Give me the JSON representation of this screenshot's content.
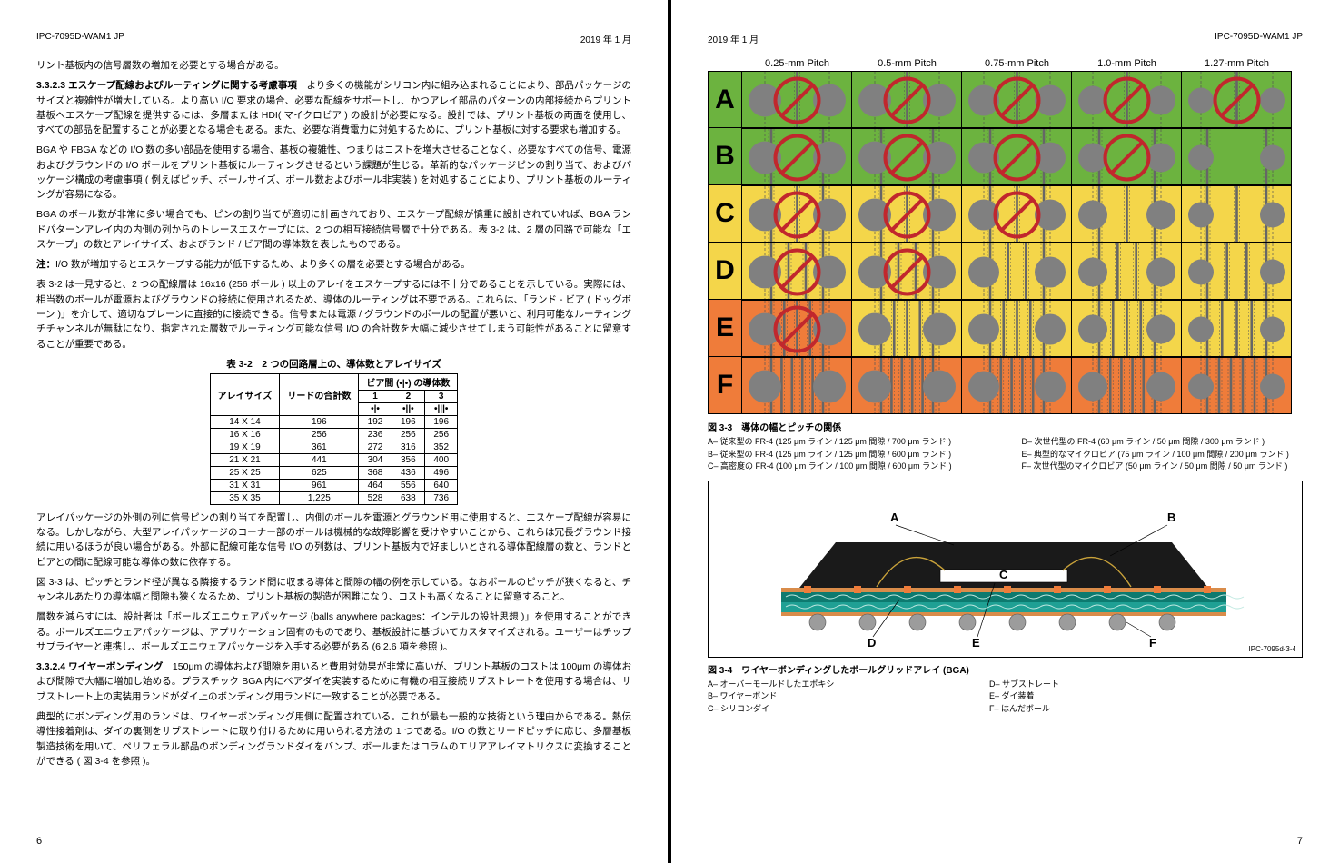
{
  "doc_id": "IPC-7095D-WAM1 JP",
  "date": "2019 年 1 月",
  "left": {
    "intro": "リント基板内の信号層数の増加を必要とする場合がある。",
    "sec_num": "3.3.2.3",
    "sec_title": "エスケープ配線およびルーティングに関する考慮事項",
    "p1": "より多くの機能がシリコン内に組み込まれることにより、部品パッケージのサイズと複雑性が増大している。より高い I/O 要求の場合、必要な配線をサポートし、かつアレイ部品のパターンの内部接続からプリント基板へエスケープ配線を提供するには、多層または HDI( マイクロビア ) の設計が必要になる。設計では、プリント基板の両面を使用し、すべての部品を配置することが必要となる場合もある。また、必要な消費電力に対処するために、プリント基板に対する要求も増加する。",
    "p2": "BGA や FBGA などの I/O 数の多い部品を使用する場合、基板の複雑性、つまりはコストを増大させることなく、必要なすべての信号、電源およびグラウンドの I/O ボールをプリント基板にルーティングさせるという課題が生じる。革新的なパッケージピンの割り当て、およびパッケージ構成の考慮事項 ( 例えばピッチ、ボールサイズ、ボール数およびボール非実装 ) を対処することにより、プリント基板のルーティングが容易になる。",
    "p3": "BGA のボール数が非常に多い場合でも、ピンの割り当てが適切に計画されており、エスケープ配線が慎重に設計されていれば、BGA ランドパターンアレイ内の内側の列からのトレースエスケープには、2 つの相互接続信号層で十分である。表 3-2 は、2 層の回路で可能な「エスケープ」の数とアレイサイズ、およびランド / ビア間の導体数を表したものである。",
    "note_label": "注：",
    "note": "I/O 数が増加するとエスケープする能力が低下するため、より多くの層を必要とする場合がある。",
    "p4": "表 3-2 は一見すると、2 つの配線層は 16x16 (256 ボール ) 以上のアレイをエスケープするには不十分であることを示している。実際には、相当数のボールが電源およびグラウンドの接続に使用されるため、導体のルーティングは不要である。これらは、「ランド - ビア ( ドッグボーン )」を介して、適切なプレーンに直接的に接続できる。信号または電源 / グラウンドのボールの配置が悪いと、利用可能なルーティングチチャンネルが無駄になり、指定された層数でルーティング可能な信号 I/O の合計数を大幅に減少させてしまう可能性があることに留意することが重要である。",
    "table_title": "表 3-2　2 つの回路層上の、導体数とアレイサイズ",
    "table": {
      "col1": "アレイサイズ",
      "col2": "リードの合計数",
      "span_head": "ビア間 (•|•) の導体数",
      "sub1": "1",
      "sub2": "2",
      "sub3": "3",
      "icon1": "•|•",
      "icon2": "•||•",
      "icon3": "•|||•",
      "rows": [
        [
          "14 X 14",
          "196",
          "192",
          "196",
          "196"
        ],
        [
          "16 X 16",
          "256",
          "236",
          "256",
          "256"
        ],
        [
          "19 X 19",
          "361",
          "272",
          "316",
          "352"
        ],
        [
          "21 X 21",
          "441",
          "304",
          "356",
          "400"
        ],
        [
          "25 X 25",
          "625",
          "368",
          "436",
          "496"
        ],
        [
          "31 X 31",
          "961",
          "464",
          "556",
          "640"
        ],
        [
          "35 X 35",
          "1,225",
          "528",
          "638",
          "736"
        ]
      ]
    },
    "p5": "アレイパッケージの外側の列に信号ピンの割り当てを配置し、内側のボールを電源とグラウンド用に使用すると、エスケープ配線が容易になる。しかしながら、大型アレイパッケージのコーナー部のボールは機械的な故障影響を受けやすいことから、これらは冗長グラウンド接続に用いるほうが良い場合がある。外部に配線可能な信号 I/O の列数は、プリント基板内で好ましいとされる導体配線層の数と、ランドとビアとの間に配線可能な導体の数に依存する。",
    "p6": "図 3-3 は、ピッチとランド径が異なる隣接するランド間に収まる導体と間隙の幅の例を示している。なおボールのピッチが狭くなると、チャンネルあたりの導体幅と間隙も狭くなるため、プリント基板の製造が困難になり、コストも高くなることに留意すること。",
    "p7": "層数を減らすには、設計者は「ボールズエニウェアパッケージ (balls anywhere packages：インテルの設計思想 )」を使用することができる。ボールズエニウェアパッケージは、アプリケーション固有のものであり、基板設計に基づいてカスタマイズされる。ユーザーはチップサプライヤーと連携し、ボールズエニウェアパッケージを入手する必要がある (6.2.6 項を参照 )。",
    "sec2_num": "3.3.2.4",
    "sec2_title": "ワイヤーボンディング",
    "p8": "150μm の導体および間隙を用いると費用対効果が非常に高いが、プリント基板のコストは 100μm の導体および間隙で大幅に増加し始める。プラスチック BGA 内にベアダイを実装するために有機の相互接続サブストレートを使用する場合は、サブストレート上の実装用ランドがダイ上のボンディング用ランドに一致することが必要である。",
    "p9": "典型的にボンディング用のランドは、ワイヤーボンディング用側に配置されている。これが最も一般的な技術という理由からである。熱伝導性接着剤は、ダイの裏側をサブストレートに取り付けるために用いられる方法の 1 つである。I/O の数とリードピッチに応じ、多層基板製造技術を用いて、ペリフェラル部品のボンディングランドダイをバンプ、ボールまたはコラムのエリアアレイマトリクスに変換することができる ( 図 3-4 を参照 )。",
    "page_num": "6"
  },
  "right": {
    "pitch_headers": [
      "0.25-mm Pitch",
      "0.5-mm Pitch",
      "0.75-mm Pitch",
      "1.0-mm Pitch",
      "1.27-mm Pitch"
    ],
    "row_labels": [
      "A",
      "B",
      "C",
      "D",
      "E",
      "F"
    ],
    "colors": {
      "green": "#6cb33f",
      "yellow": "#f4d64a",
      "orange": "#ef7c3a",
      "red_ring": "#c1272d",
      "pad": "#808080",
      "trace": "#666666",
      "dash": "#555555"
    },
    "grid": [
      [
        "green",
        "green",
        "green",
        "green",
        "green"
      ],
      [
        "green",
        "green",
        "green",
        "green",
        "green"
      ],
      [
        "yellow",
        "yellow",
        "yellow",
        "yellow",
        "yellow"
      ],
      [
        "yellow",
        "yellow",
        "yellow",
        "yellow",
        "yellow"
      ],
      [
        "orange",
        "yellow",
        "yellow",
        "yellow",
        "yellow"
      ],
      [
        "orange",
        "orange",
        "orange",
        "orange",
        "orange"
      ]
    ],
    "prohibit": [
      [
        true,
        true,
        true,
        true,
        true
      ],
      [
        true,
        true,
        true,
        true,
        false
      ],
      [
        true,
        true,
        true,
        false,
        false
      ],
      [
        true,
        true,
        false,
        false,
        false
      ],
      [
        true,
        false,
        false,
        false,
        false
      ],
      [
        false,
        false,
        false,
        false,
        false
      ]
    ],
    "traces": [
      [
        1,
        1,
        1,
        1,
        1
      ],
      [
        2,
        2,
        2,
        2,
        2
      ],
      [
        3,
        3,
        3,
        3,
        3
      ],
      [
        4,
        4,
        4,
        4,
        4
      ],
      [
        5,
        5,
        5,
        5,
        5
      ],
      [
        6,
        6,
        6,
        6,
        6
      ]
    ],
    "fig33_caption": "図 3-3　導体の幅とピッチの関係",
    "fig33_legend_left": [
      "A– 従来型の FR-4 (125 μm ライン / 125 μm 間隙 / 700 μm ランド )",
      "B– 従来型の FR-4 (125 μm ライン / 125 μm 間隙 / 600 μm ランド )",
      "C– 高密度の FR-4 (100 μm ライン / 100 μm 間隙 / 600 μm ランド )"
    ],
    "fig33_legend_right": [
      "D– 次世代型の FR-4 (60 μm ライン / 50 μm 間隙 / 300 μm ランド )",
      "E– 典型的なマイクロビア (75 μm ライン / 100 μm 間隙 / 200 μm ランド )",
      "F– 次世代型のマイクロビア (50 μm ライン / 50 μm 間隙 / 50 μm ランド )"
    ],
    "fig34_ref": "IPC-7095d-3-4",
    "fig34_caption": "図 3-4　ワイヤーボンディングしたボールグリッドアレイ (BGA)",
    "fig34_legend_left": [
      "A– オーバーモールドしたエポキシ",
      "B– ワイヤーボンド",
      "C– シリコンダイ"
    ],
    "fig34_legend_right": [
      "D– サブストレート",
      "E– ダイ装着",
      "F– はんだボール"
    ],
    "fig34_labels": {
      "A": "A",
      "B": "B",
      "C": "C",
      "D": "D",
      "E": "E",
      "F": "F"
    },
    "fig34_colors": {
      "mold": "#1a1a1a",
      "substrate": "#ef7c3a",
      "teal": "#0d7a6f",
      "teal2": "#1fa094",
      "ball": "#9c9c9c",
      "copper": "#d98c4a",
      "wire": "#c9a23a"
    },
    "page_num": "7"
  }
}
